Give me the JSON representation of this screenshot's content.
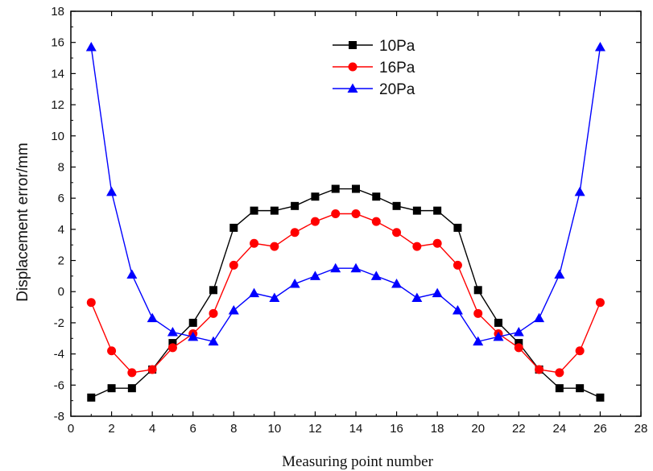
{
  "chart_data": {
    "type": "line",
    "title": "",
    "xlabel": "Measuring point number",
    "ylabel": "Displacement error/mm",
    "xlim": [
      0,
      28
    ],
    "ylim": [
      -8,
      18
    ],
    "xticks": [
      0,
      2,
      4,
      6,
      8,
      10,
      12,
      14,
      16,
      18,
      20,
      22,
      24,
      26,
      28
    ],
    "yticks": [
      -8,
      -6,
      -4,
      -2,
      0,
      2,
      4,
      6,
      8,
      10,
      12,
      14,
      16,
      18
    ],
    "grid": false,
    "legend_position": "top-center",
    "x": [
      1,
      2,
      3,
      4,
      5,
      6,
      7,
      8,
      9,
      10,
      11,
      12,
      13,
      14,
      15,
      16,
      17,
      18,
      19,
      20,
      21,
      22,
      23,
      24,
      25,
      26
    ],
    "series": [
      {
        "name": "10Pa",
        "color": "#000000",
        "marker": "square",
        "values": [
          -6.8,
          -6.2,
          -6.2,
          -5.0,
          -3.3,
          -2.0,
          0.1,
          4.1,
          5.2,
          5.2,
          5.5,
          6.1,
          6.6,
          6.6,
          6.1,
          5.5,
          5.2,
          5.2,
          4.1,
          0.1,
          -2.0,
          -3.3,
          -5.0,
          -6.2,
          -6.2,
          -6.8
        ]
      },
      {
        "name": "16Pa",
        "color": "#ff0000",
        "marker": "circle",
        "values": [
          -0.7,
          -3.8,
          -5.2,
          -5.0,
          -3.6,
          -2.7,
          -1.4,
          1.7,
          3.1,
          2.9,
          3.8,
          4.5,
          5.0,
          5.0,
          4.5,
          3.8,
          2.9,
          3.1,
          1.7,
          -1.4,
          -2.7,
          -3.6,
          -5.0,
          -5.2,
          -3.8,
          -0.7
        ]
      },
      {
        "name": "20Pa",
        "color": "#0000ff",
        "marker": "triangle",
        "values": [
          15.7,
          6.4,
          1.1,
          -1.7,
          -2.6,
          -2.9,
          -3.2,
          -1.2,
          -0.1,
          -0.4,
          0.5,
          1.0,
          1.5,
          1.5,
          1.0,
          0.5,
          -0.4,
          -0.1,
          -1.2,
          -3.2,
          -2.9,
          -2.6,
          -1.7,
          1.1,
          6.4,
          15.7
        ]
      }
    ]
  }
}
